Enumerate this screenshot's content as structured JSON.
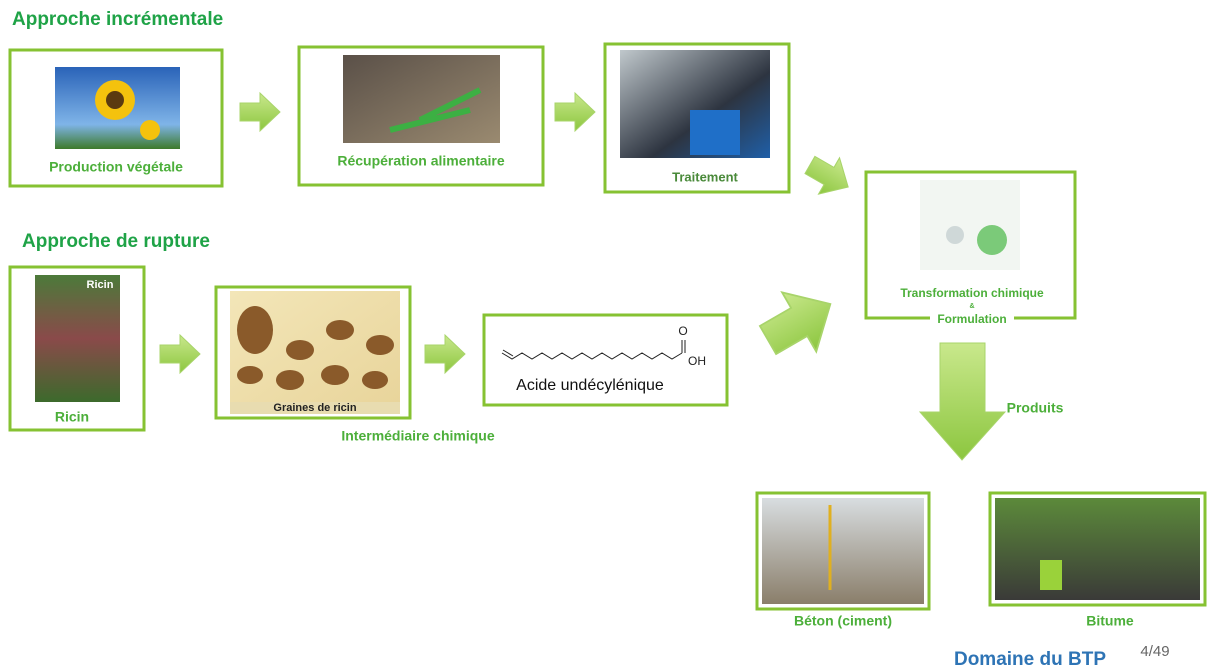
{
  "incremental": {
    "title": "Approche incrémentale",
    "steps": [
      "Production végétale",
      "Récupération alimentaire",
      "Traitement"
    ]
  },
  "transformation": {
    "line1": "Transformation chimique",
    "line2": "&",
    "line3": "Formulation"
  },
  "rupture": {
    "title": "Approche de rupture",
    "image_caption": "Ricin",
    "seeds_caption": "Graines de ricin",
    "steps": [
      "Ricin",
      "Intermédiaire chimique"
    ],
    "molecule": {
      "oxygen": "O",
      "hydroxyl": "OH",
      "name": "Acide undécylénique"
    }
  },
  "products": {
    "label": "Produits",
    "items": [
      "Béton (ciment)",
      "Bitume"
    ],
    "domain": "Domaine du BTP"
  },
  "page_number": "4/49"
}
